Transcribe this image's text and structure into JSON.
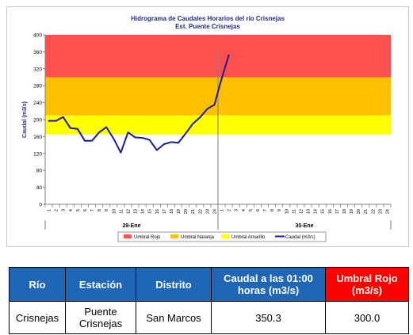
{
  "chart_data": {
    "type": "line",
    "title": "Hidrograma de Caudales Horarios del rio Crisnejas",
    "subtitle": "Est. Puente Crisnejas",
    "ylabel": "Caudal  (m3/s)",
    "ylim": [
      0,
      400
    ],
    "yticks": [
      0,
      40,
      80,
      120,
      160,
      200,
      240,
      280,
      320,
      360,
      400
    ],
    "xticks": [
      "1",
      "2",
      "3",
      "4",
      "5",
      "6",
      "7",
      "8",
      "9",
      "10",
      "11",
      "12",
      "13",
      "14",
      "15",
      "16",
      "17",
      "18",
      "19",
      "20",
      "21",
      "22",
      "23",
      "24",
      "1",
      "2",
      "3",
      "4",
      "5",
      "6",
      "7",
      "8",
      "9",
      "10",
      "11",
      "12",
      "13",
      "14",
      "15",
      "16",
      "17",
      "18",
      "19",
      "20",
      "21",
      "22",
      "23",
      "24"
    ],
    "day_labels": [
      "29-Ene",
      "30-Ene"
    ],
    "thresholds": [
      {
        "name": "Umbral Rojo",
        "from": 300,
        "to": 400,
        "color": "#ff5050"
      },
      {
        "name": "Umbral Naranja",
        "from": 210,
        "to": 300,
        "color": "#ffc000"
      },
      {
        "name": "Umbral Amarillo",
        "from": 165,
        "to": 210,
        "color": "#ffff00"
      }
    ],
    "series": [
      {
        "name": "Caudal (m3/s)",
        "color": "#1a1a9e",
        "x": [
          0,
          1,
          2,
          3,
          4,
          5,
          6,
          7,
          8,
          9,
          10,
          11,
          12,
          13,
          14,
          15,
          16,
          17,
          18,
          19,
          20,
          21,
          22,
          23,
          24,
          25
        ],
        "values": [
          197,
          197,
          206,
          180,
          178,
          150,
          150,
          170,
          182,
          155,
          122,
          170,
          158,
          157,
          152,
          128,
          142,
          147,
          145,
          167,
          190,
          205,
          225,
          235,
          296,
          352
        ]
      }
    ],
    "legend": [
      "Umbral Rojo",
      "Umbral Naranja",
      "Umbral Amarillo",
      "Caudal (m3/s)"
    ],
    "legend_position": "bottom"
  },
  "table": {
    "headers": [
      "Río",
      "Estación",
      "Distrito",
      "Caudal a las 01:00 horas (m3/s)",
      "Umbral Rojo (m3/s)"
    ],
    "header_colors": [
      "#1f66b5",
      "#1f66b5",
      "#1f66b5",
      "#1f66b5",
      "#ff0000"
    ],
    "row": [
      "Crisnejas",
      "Puente Crisnejas",
      "San Marcos",
      "350.3",
      "300.0"
    ]
  }
}
